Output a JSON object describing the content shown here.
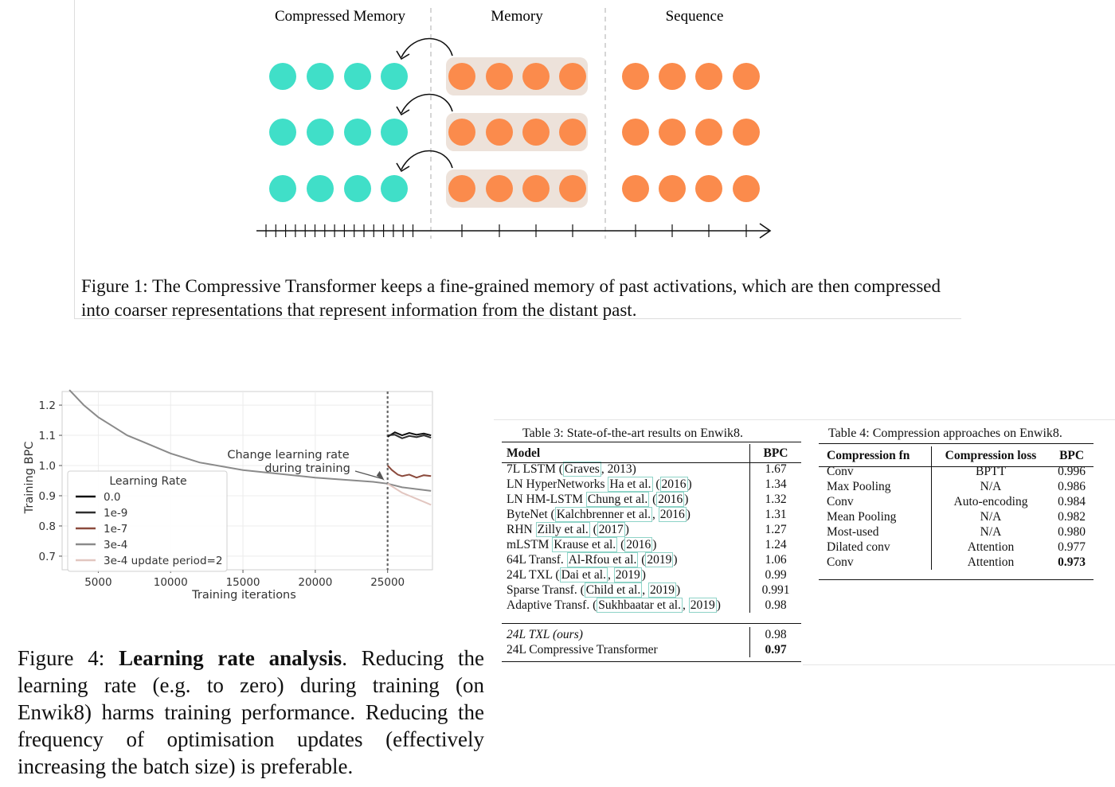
{
  "figure1": {
    "labels": {
      "compressed_memory": "Compressed  Memory",
      "memory": "Memory",
      "sequence": "Sequence"
    },
    "colors": {
      "compressed": "#40dfc8",
      "memory": "#fb8b4c",
      "memory_bg": "#ede2da"
    },
    "caption": "Figure 1: The Compressive Transformer keeps a fine-grained memory of past activations, which are then compressed into coarser representations that represent information from the distant past."
  },
  "figure4": {
    "caption_prefix": "Figure 4: ",
    "caption_bold": "Learning rate analysis",
    "caption_rest": ". Reducing the learning rate (e.g.  to zero) during training (on Enwik8) harms training performance.  Reducing the frequency of optimisation updates (effectively increasing the batch size) is preferable."
  },
  "chart_data": {
    "type": "line",
    "title": "",
    "xlabel": "Training iterations",
    "ylabel": "Training BPC",
    "xticks": [
      5000,
      10000,
      15000,
      20000,
      25000
    ],
    "yticks": [
      0.7,
      0.8,
      0.9,
      1.0,
      1.1,
      1.2
    ],
    "xlim": [
      0,
      28000
    ],
    "ylim": [
      0.66,
      1.25
    ],
    "grid": true,
    "legend_title": "Learning Rate",
    "legend_position": "lower-left",
    "annotation": {
      "text_line1": "Change learning rate",
      "text_line2": "during training",
      "x": 25000,
      "y": 0.945
    },
    "vline_x": 25000,
    "series": [
      {
        "name": "0.0",
        "color": "#111111",
        "x": [
          25000,
          25500,
          26000,
          26500,
          27000,
          27500,
          28000
        ],
        "y": [
          1.095,
          1.11,
          1.1,
          1.108,
          1.102,
          1.106,
          1.1
        ]
      },
      {
        "name": "1e-9",
        "color": "#2f2f2f",
        "x": [
          25000,
          25500,
          26000,
          26500,
          27000,
          27500,
          28000
        ],
        "y": [
          1.1,
          1.102,
          1.09,
          1.098,
          1.094,
          1.1,
          1.092
        ]
      },
      {
        "name": "1e-7",
        "color": "#8b4a3c",
        "x": [
          25000,
          25300,
          25700,
          26000,
          26500,
          27000,
          27500,
          28000
        ],
        "y": [
          1.0,
          0.985,
          0.97,
          0.965,
          0.97,
          0.96,
          0.968,
          0.965
        ]
      },
      {
        "name": "3e-4",
        "color": "#8a8a8a",
        "x": [
          3000,
          4000,
          5000,
          6000,
          7000,
          8000,
          10000,
          12000,
          15000,
          18000,
          20000,
          22000,
          24000,
          25000,
          26000,
          27000,
          28000
        ],
        "y": [
          1.25,
          1.2,
          1.16,
          1.13,
          1.1,
          1.08,
          1.04,
          1.01,
          0.985,
          0.97,
          0.96,
          0.953,
          0.946,
          0.94,
          0.928,
          0.922,
          0.916
        ]
      },
      {
        "name": "3e-4 update period=2",
        "color": "#e2c6c0",
        "x": [
          25000,
          25500,
          26000,
          26500,
          27000,
          27500,
          28000
        ],
        "y": [
          0.94,
          0.925,
          0.91,
          0.9,
          0.89,
          0.88,
          0.87
        ]
      }
    ]
  },
  "table3": {
    "caption": "Table 3: State-of-the-art results on Enwik8.",
    "headers": [
      "Model",
      "BPC"
    ],
    "rows": [
      {
        "pre": "7L LSTM (",
        "cite": "Graves",
        "mid": ", 2013)",
        "cite2": "",
        "post": "",
        "bpc": "1.67"
      },
      {
        "pre": "LN HyperNetworks ",
        "cite": "Ha et al.",
        "mid": " (",
        "cite2": "2016",
        "post": ")",
        "bpc": "1.34"
      },
      {
        "pre": "LN HM-LSTM ",
        "cite": "Chung et al.",
        "mid": " (",
        "cite2": "2016",
        "post": ")",
        "bpc": "1.32"
      },
      {
        "pre": "ByteNet (",
        "cite": "Kalchbrenner et al.",
        "mid": ", ",
        "cite2": "2016",
        "post": ")",
        "bpc": "1.31"
      },
      {
        "pre": "RHN ",
        "cite": "Zilly et al.",
        "mid": " (",
        "cite2": "2017",
        "post": ")",
        "bpc": "1.27"
      },
      {
        "pre": "mLSTM ",
        "cite": "Krause et al.",
        "mid": " (",
        "cite2": "2016",
        "post": ")",
        "bpc": "1.24"
      },
      {
        "pre": "64L Transf. ",
        "cite": "Al-Rfou et al.",
        "mid": " (",
        "cite2": "2019",
        "post": ")",
        "bpc": "1.06"
      },
      {
        "pre": "24L TXL (",
        "cite": "Dai et al.",
        "mid": ", ",
        "cite2": "2019",
        "post": ")",
        "bpc": "0.99"
      },
      {
        "pre": "Sparse Transf. (",
        "cite": "Child et al.",
        "mid": ", ",
        "cite2": "2019",
        "post": ")",
        "bpc": "0.991"
      },
      {
        "pre": "Adaptive Transf. (",
        "cite": "Sukhbaatar et al.",
        "mid": ", ",
        "cite2": "2019",
        "post": ")",
        "bpc": "0.98"
      }
    ],
    "ours": [
      {
        "model": "24L TXL (ours)",
        "bpc": "0.98"
      },
      {
        "model": "24L Compressive Transformer",
        "bpc": "0.97"
      }
    ]
  },
  "table4": {
    "caption": "Table 4: Compression approaches on Enwik8.",
    "headers": [
      "Compression fn",
      "Compression loss",
      "BPC"
    ],
    "rows": [
      [
        "Conv",
        "BPTT",
        "0.996"
      ],
      [
        "Max Pooling",
        "N/A",
        "0.986"
      ],
      [
        "Conv",
        "Auto-encoding",
        "0.984"
      ],
      [
        "Mean Pooling",
        "N/A",
        "0.982"
      ],
      [
        "Most-used",
        "N/A",
        "0.980"
      ],
      [
        "Dilated conv",
        "Attention",
        "0.977"
      ],
      [
        "Conv",
        "Attention",
        "0.973"
      ]
    ]
  }
}
